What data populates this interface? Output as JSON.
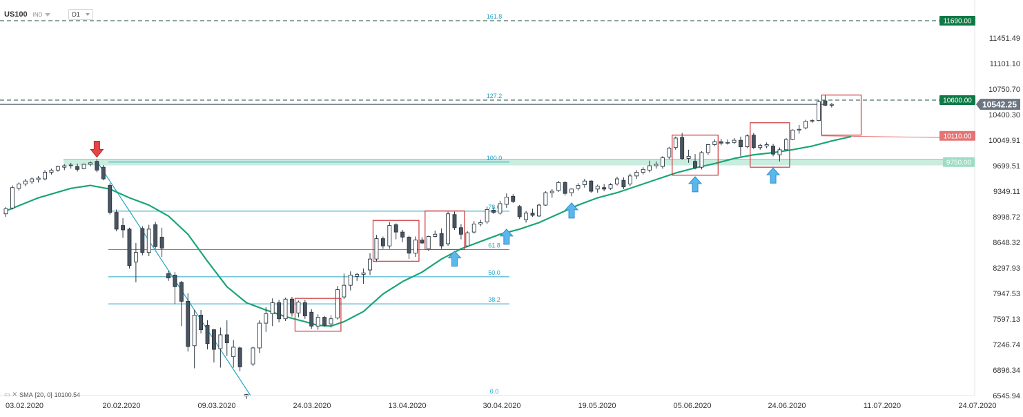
{
  "header": {
    "symbol": "US100",
    "symbol_type": "IND",
    "timeframe": "D1"
  },
  "indicator": {
    "label": "SMA",
    "params": "[20, 0]",
    "value": "10100.54"
  },
  "colors": {
    "up_candle": "#ffffff",
    "down_candle": "#4a5561",
    "sma": "#1aa574",
    "fib": "#25a4c4",
    "trend_line": "#25a4c4",
    "zone": "#bfead9",
    "box": "#c8383c",
    "level_tag_green": "#0d7a44",
    "level_tag_red": "#e57373",
    "price_tag": "#6c7682",
    "arrow_up": "#5ab7ec",
    "arrow_down": "#e64545"
  },
  "chart_data": {
    "type": "candlestick",
    "x_ticks": [
      "03.02.2020",
      "20.02.2020",
      "09.03.2020",
      "24.03.2020",
      "13.04.2020",
      "30.04.2020",
      "19.05.2020",
      "05.06.2020",
      "24.06.2020",
      "11.07.2020",
      "24.07.2020"
    ],
    "y_ticks": [
      6545.94,
      6896.34,
      7246.74,
      7597.13,
      7947.53,
      8297.93,
      8648.32,
      8998.72,
      9349.11,
      9699.51,
      10049.91,
      10400.3,
      10750.7,
      11101.1,
      11451.49
    ],
    "y_tick_labels": [
      "6545.94",
      "6896.34",
      "7246.74",
      "7597.13",
      "7947.53",
      "8297.93",
      "8648.32",
      "8998.72",
      "9349.11",
      "9699.51",
      "10049.91",
      "10400.30",
      "10750.70",
      "11101.10",
      "11451.49"
    ],
    "ylim": [
      6545.94,
      11690
    ],
    "current_price": "10542.25",
    "levels": [
      {
        "price": 11690,
        "label": "11690.00",
        "tag": "green",
        "style": "dashed"
      },
      {
        "price": 10600,
        "label": "10600.00",
        "tag": "green",
        "style": "dashed"
      },
      {
        "price": 10110,
        "label": "10110.00",
        "tag": "red",
        "style": "solid"
      },
      {
        "price": 9750,
        "label": "9750.00",
        "tag": "zone",
        "style": "zone"
      }
    ],
    "fibonacci": [
      {
        "ratio": "161.8",
        "price": 11690
      },
      {
        "ratio": "127.2",
        "price": 10600
      },
      {
        "ratio": "100.0",
        "price": 9750
      },
      {
        "ratio": "78.6",
        "price": 9076
      },
      {
        "ratio": "61.8",
        "price": 8549
      },
      {
        "ratio": "50.0",
        "price": 8177
      },
      {
        "ratio": "38.2",
        "price": 7805
      },
      {
        "ratio": "0.0",
        "price": 6546
      }
    ],
    "candles": [
      {
        "o": 9040,
        "h": 9135,
        "l": 9000,
        "c": 9110
      },
      {
        "o": 9120,
        "h": 9430,
        "l": 9100,
        "c": 9400
      },
      {
        "o": 9390,
        "h": 9470,
        "l": 9360,
        "c": 9450
      },
      {
        "o": 9450,
        "h": 9520,
        "l": 9420,
        "c": 9490
      },
      {
        "o": 9480,
        "h": 9540,
        "l": 9450,
        "c": 9520
      },
      {
        "o": 9510,
        "h": 9560,
        "l": 9470,
        "c": 9530
      },
      {
        "o": 9520,
        "h": 9640,
        "l": 9500,
        "c": 9610
      },
      {
        "o": 9610,
        "h": 9660,
        "l": 9580,
        "c": 9640
      },
      {
        "o": 9640,
        "h": 9700,
        "l": 9620,
        "c": 9690
      },
      {
        "o": 9680,
        "h": 9720,
        "l": 9640,
        "c": 9700
      },
      {
        "o": 9700,
        "h": 9740,
        "l": 9660,
        "c": 9710
      },
      {
        "o": 9690,
        "h": 9730,
        "l": 9620,
        "c": 9650
      },
      {
        "o": 9660,
        "h": 9730,
        "l": 9650,
        "c": 9720
      },
      {
        "o": 9720,
        "h": 9760,
        "l": 9690,
        "c": 9740
      },
      {
        "o": 9760,
        "h": 9790,
        "l": 9610,
        "c": 9640
      },
      {
        "o": 9680,
        "h": 9710,
        "l": 9500,
        "c": 9520
      },
      {
        "o": 9430,
        "h": 9460,
        "l": 9030,
        "c": 9060
      },
      {
        "o": 9060,
        "h": 9100,
        "l": 8800,
        "c": 8830
      },
      {
        "o": 8880,
        "h": 8980,
        "l": 8710,
        "c": 8820
      },
      {
        "o": 8830,
        "h": 8850,
        "l": 8290,
        "c": 8330
      },
      {
        "o": 8380,
        "h": 8640,
        "l": 8100,
        "c": 8510
      },
      {
        "o": 8840,
        "h": 8870,
        "l": 8470,
        "c": 8510
      },
      {
        "o": 8510,
        "h": 8890,
        "l": 8460,
        "c": 8830
      },
      {
        "o": 8890,
        "h": 8930,
        "l": 8560,
        "c": 8590
      },
      {
        "o": 8720,
        "h": 8850,
        "l": 8450,
        "c": 8570
      },
      {
        "o": 8220,
        "h": 8260,
        "l": 8120,
        "c": 8160
      },
      {
        "o": 8200,
        "h": 8240,
        "l": 7800,
        "c": 8040
      },
      {
        "o": 8100,
        "h": 8120,
        "l": 7500,
        "c": 7840
      },
      {
        "o": 7840,
        "h": 7950,
        "l": 7150,
        "c": 7220
      },
      {
        "o": 7230,
        "h": 7720,
        "l": 6920,
        "c": 7650
      },
      {
        "o": 7650,
        "h": 7720,
        "l": 7400,
        "c": 7450
      },
      {
        "o": 7510,
        "h": 7580,
        "l": 7180,
        "c": 7260
      },
      {
        "o": 7450,
        "h": 7460,
        "l": 7000,
        "c": 7180
      },
      {
        "o": 7190,
        "h": 7480,
        "l": 6930,
        "c": 7380
      },
      {
        "o": 7380,
        "h": 7580,
        "l": 7090,
        "c": 7270
      },
      {
        "o": 7080,
        "h": 7310,
        "l": 6930,
        "c": 7210
      },
      {
        "o": 7200,
        "h": 7220,
        "l": 6880,
        "c": 6940
      },
      {
        "o": 6540,
        "h": 6570,
        "l": 6500,
        "c": 6560
      },
      {
        "o": 6980,
        "h": 7220,
        "l": 6950,
        "c": 7200
      },
      {
        "o": 7200,
        "h": 7580,
        "l": 7130,
        "c": 7540
      },
      {
        "o": 7540,
        "h": 7760,
        "l": 7420,
        "c": 7670
      },
      {
        "o": 7670,
        "h": 7880,
        "l": 7500,
        "c": 7820
      },
      {
        "o": 7820,
        "h": 7860,
        "l": 7550,
        "c": 7600
      },
      {
        "o": 7600,
        "h": 7890,
        "l": 7570,
        "c": 7870
      },
      {
        "o": 7870,
        "h": 7900,
        "l": 7630,
        "c": 7680
      },
      {
        "o": 7680,
        "h": 7850,
        "l": 7620,
        "c": 7830
      },
      {
        "o": 7820,
        "h": 7860,
        "l": 7600,
        "c": 7640
      },
      {
        "o": 7690,
        "h": 7730,
        "l": 7460,
        "c": 7500
      },
      {
        "o": 7500,
        "h": 7660,
        "l": 7450,
        "c": 7620
      },
      {
        "o": 7620,
        "h": 7640,
        "l": 7490,
        "c": 7510
      },
      {
        "o": 7530,
        "h": 7650,
        "l": 7480,
        "c": 7600
      },
      {
        "o": 7610,
        "h": 8050,
        "l": 7590,
        "c": 8000
      },
      {
        "o": 7900,
        "h": 8220,
        "l": 7870,
        "c": 8060
      },
      {
        "o": 8060,
        "h": 8250,
        "l": 7990,
        "c": 8200
      },
      {
        "o": 8180,
        "h": 8230,
        "l": 8120,
        "c": 8210
      },
      {
        "o": 8210,
        "h": 8290,
        "l": 8080,
        "c": 8230
      },
      {
        "o": 8270,
        "h": 8500,
        "l": 8200,
        "c": 8420
      },
      {
        "o": 8420,
        "h": 8750,
        "l": 8380,
        "c": 8700
      },
      {
        "o": 8700,
        "h": 8730,
        "l": 8560,
        "c": 8600
      },
      {
        "o": 8600,
        "h": 8930,
        "l": 8560,
        "c": 8880
      },
      {
        "o": 8890,
        "h": 8910,
        "l": 8690,
        "c": 8790
      },
      {
        "o": 8790,
        "h": 8820,
        "l": 8650,
        "c": 8720
      },
      {
        "o": 8720,
        "h": 8740,
        "l": 8420,
        "c": 8500
      },
      {
        "o": 8500,
        "h": 8730,
        "l": 8450,
        "c": 8680
      },
      {
        "o": 8680,
        "h": 8720,
        "l": 8630,
        "c": 8640
      },
      {
        "o": 8560,
        "h": 8740,
        "l": 8530,
        "c": 8730
      },
      {
        "o": 8730,
        "h": 8810,
        "l": 8720,
        "c": 8760
      },
      {
        "o": 8770,
        "h": 8840,
        "l": 8560,
        "c": 8600
      },
      {
        "o": 8630,
        "h": 9070,
        "l": 8600,
        "c": 9040
      },
      {
        "o": 9030,
        "h": 9070,
        "l": 8820,
        "c": 8850
      },
      {
        "o": 8850,
        "h": 8900,
        "l": 8690,
        "c": 8760
      },
      {
        "o": 8600,
        "h": 8800,
        "l": 8590,
        "c": 8780
      },
      {
        "o": 8790,
        "h": 8940,
        "l": 8770,
        "c": 8900
      },
      {
        "o": 8900,
        "h": 8960,
        "l": 8870,
        "c": 8920
      },
      {
        "o": 8930,
        "h": 9140,
        "l": 8900,
        "c": 9100
      },
      {
        "o": 9090,
        "h": 9130,
        "l": 9040,
        "c": 9060
      },
      {
        "o": 9050,
        "h": 9220,
        "l": 9030,
        "c": 9180
      },
      {
        "o": 9170,
        "h": 9320,
        "l": 9120,
        "c": 9270
      },
      {
        "o": 9280,
        "h": 9310,
        "l": 9190,
        "c": 9210
      },
      {
        "o": 9140,
        "h": 9160,
        "l": 8970,
        "c": 9000
      },
      {
        "o": 8960,
        "h": 9080,
        "l": 8920,
        "c": 9050
      },
      {
        "o": 9050,
        "h": 9110,
        "l": 9000,
        "c": 9020
      },
      {
        "o": 9010,
        "h": 9180,
        "l": 9000,
        "c": 9160
      },
      {
        "o": 9160,
        "h": 9350,
        "l": 9150,
        "c": 9330
      },
      {
        "o": 9330,
        "h": 9380,
        "l": 9260,
        "c": 9350
      },
      {
        "o": 9360,
        "h": 9490,
        "l": 9340,
        "c": 9470
      },
      {
        "o": 9470,
        "h": 9490,
        "l": 9290,
        "c": 9320
      },
      {
        "o": 9330,
        "h": 9390,
        "l": 9280,
        "c": 9380
      },
      {
        "o": 9390,
        "h": 9460,
        "l": 9360,
        "c": 9430
      },
      {
        "o": 9440,
        "h": 9520,
        "l": 9400,
        "c": 9490
      },
      {
        "o": 9490,
        "h": 9500,
        "l": 9330,
        "c": 9350
      },
      {
        "o": 9380,
        "h": 9440,
        "l": 9330,
        "c": 9420
      },
      {
        "o": 9400,
        "h": 9450,
        "l": 9350,
        "c": 9380
      },
      {
        "o": 9390,
        "h": 9460,
        "l": 9370,
        "c": 9440
      },
      {
        "o": 9450,
        "h": 9550,
        "l": 9430,
        "c": 9520
      },
      {
        "o": 9500,
        "h": 9540,
        "l": 9380,
        "c": 9410
      },
      {
        "o": 9450,
        "h": 9590,
        "l": 9420,
        "c": 9560
      },
      {
        "o": 9560,
        "h": 9640,
        "l": 9520,
        "c": 9610
      },
      {
        "o": 9610,
        "h": 9680,
        "l": 9580,
        "c": 9650
      },
      {
        "o": 9640,
        "h": 9770,
        "l": 9610,
        "c": 9700
      },
      {
        "o": 9700,
        "h": 9760,
        "l": 9660,
        "c": 9720
      },
      {
        "o": 9690,
        "h": 9830,
        "l": 9660,
        "c": 9810
      },
      {
        "o": 9820,
        "h": 9960,
        "l": 9790,
        "c": 9940
      },
      {
        "o": 9950,
        "h": 10100,
        "l": 9920,
        "c": 10080
      },
      {
        "o": 10090,
        "h": 10150,
        "l": 9780,
        "c": 9800
      },
      {
        "o": 9800,
        "h": 9920,
        "l": 9740,
        "c": 9830
      },
      {
        "o": 9760,
        "h": 9860,
        "l": 9650,
        "c": 9670
      },
      {
        "o": 9680,
        "h": 9900,
        "l": 9650,
        "c": 9880
      },
      {
        "o": 9880,
        "h": 10000,
        "l": 9850,
        "c": 9990
      },
      {
        "o": 9990,
        "h": 10060,
        "l": 9970,
        "c": 10030
      },
      {
        "o": 10030,
        "h": 10070,
        "l": 9980,
        "c": 10010
      },
      {
        "o": 10010,
        "h": 10060,
        "l": 9990,
        "c": 10020
      },
      {
        "o": 10020,
        "h": 10080,
        "l": 10000,
        "c": 10050
      },
      {
        "o": 10050,
        "h": 10100,
        "l": 9830,
        "c": 9960
      },
      {
        "o": 9960,
        "h": 10130,
        "l": 9940,
        "c": 10110
      },
      {
        "o": 10120,
        "h": 10150,
        "l": 9930,
        "c": 9950
      },
      {
        "o": 9950,
        "h": 10000,
        "l": 9920,
        "c": 9980
      },
      {
        "o": 9970,
        "h": 10020,
        "l": 9940,
        "c": 9990
      },
      {
        "o": 9970,
        "h": 10000,
        "l": 9830,
        "c": 9860
      },
      {
        "o": 9850,
        "h": 9950,
        "l": 9760,
        "c": 9920
      },
      {
        "o": 9920,
        "h": 10080,
        "l": 9910,
        "c": 10060
      },
      {
        "o": 10060,
        "h": 10200,
        "l": 10050,
        "c": 10190
      },
      {
        "o": 10190,
        "h": 10260,
        "l": 10140,
        "c": 10200
      },
      {
        "o": 10220,
        "h": 10330,
        "l": 10200,
        "c": 10310
      },
      {
        "o": 10310,
        "h": 10340,
        "l": 10290,
        "c": 10320
      },
      {
        "o": 10320,
        "h": 10600,
        "l": 10310,
        "c": 10580
      },
      {
        "o": 10590,
        "h": 10670,
        "l": 10520,
        "c": 10530
      },
      {
        "o": 10530,
        "h": 10560,
        "l": 10500,
        "c": 10542
      }
    ],
    "sma": [
      {
        "i": 0,
        "v": 9080
      },
      {
        "i": 5,
        "v": 9260
      },
      {
        "i": 10,
        "v": 9390
      },
      {
        "i": 13,
        "v": 9430
      },
      {
        "i": 16,
        "v": 9380
      },
      {
        "i": 19,
        "v": 9260
      },
      {
        "i": 22,
        "v": 9160
      },
      {
        "i": 25,
        "v": 9010
      },
      {
        "i": 28,
        "v": 8760
      },
      {
        "i": 31,
        "v": 8390
      },
      {
        "i": 34,
        "v": 8040
      },
      {
        "i": 37,
        "v": 7820
      },
      {
        "i": 40,
        "v": 7720
      },
      {
        "i": 43,
        "v": 7630
      },
      {
        "i": 46,
        "v": 7560
      },
      {
        "i": 48,
        "v": 7510
      },
      {
        "i": 50,
        "v": 7500
      },
      {
        "i": 52,
        "v": 7560
      },
      {
        "i": 55,
        "v": 7700
      },
      {
        "i": 58,
        "v": 7940
      },
      {
        "i": 61,
        "v": 8110
      },
      {
        "i": 64,
        "v": 8240
      },
      {
        "i": 67,
        "v": 8420
      },
      {
        "i": 70,
        "v": 8560
      },
      {
        "i": 73,
        "v": 8660
      },
      {
        "i": 76,
        "v": 8760
      },
      {
        "i": 79,
        "v": 8830
      },
      {
        "i": 82,
        "v": 8920
      },
      {
        "i": 85,
        "v": 9040
      },
      {
        "i": 88,
        "v": 9160
      },
      {
        "i": 91,
        "v": 9260
      },
      {
        "i": 94,
        "v": 9330
      },
      {
        "i": 97,
        "v": 9420
      },
      {
        "i": 100,
        "v": 9510
      },
      {
        "i": 103,
        "v": 9600
      },
      {
        "i": 106,
        "v": 9670
      },
      {
        "i": 109,
        "v": 9730
      },
      {
        "i": 112,
        "v": 9800
      },
      {
        "i": 115,
        "v": 9850
      },
      {
        "i": 118,
        "v": 9880
      },
      {
        "i": 121,
        "v": 9920
      },
      {
        "i": 124,
        "v": 9970
      },
      {
        "i": 127,
        "v": 10040
      },
      {
        "i": 130,
        "v": 10100
      }
    ],
    "trend_line": [
      {
        "i": 14,
        "v": 9760
      },
      {
        "i": 37,
        "v": 6546
      }
    ],
    "boxes": [
      {
        "i0": 45,
        "i1": 51,
        "top": 7880,
        "bottom": 7430
      },
      {
        "i0": 57,
        "i1": 63,
        "top": 8950,
        "bottom": 8390
      },
      {
        "i0": 65,
        "i1": 70,
        "top": 9080,
        "bottom": 8550
      },
      {
        "i0": 103,
        "i1": 109,
        "top": 10120,
        "bottom": 9570
      },
      {
        "i0": 115,
        "i1": 120,
        "top": 10290,
        "bottom": 9680
      },
      {
        "i0": 126,
        "i1": 131,
        "top": 10670,
        "bottom": 10120
      }
    ],
    "arrows_up": [
      {
        "i": 69,
        "v": 8530
      },
      {
        "i": 77,
        "v": 8830
      },
      {
        "i": 87,
        "v": 9190
      },
      {
        "i": 106,
        "v": 9550
      },
      {
        "i": 118,
        "v": 9670
      }
    ],
    "arrow_down": {
      "i": 14,
      "v": 9790
    }
  }
}
